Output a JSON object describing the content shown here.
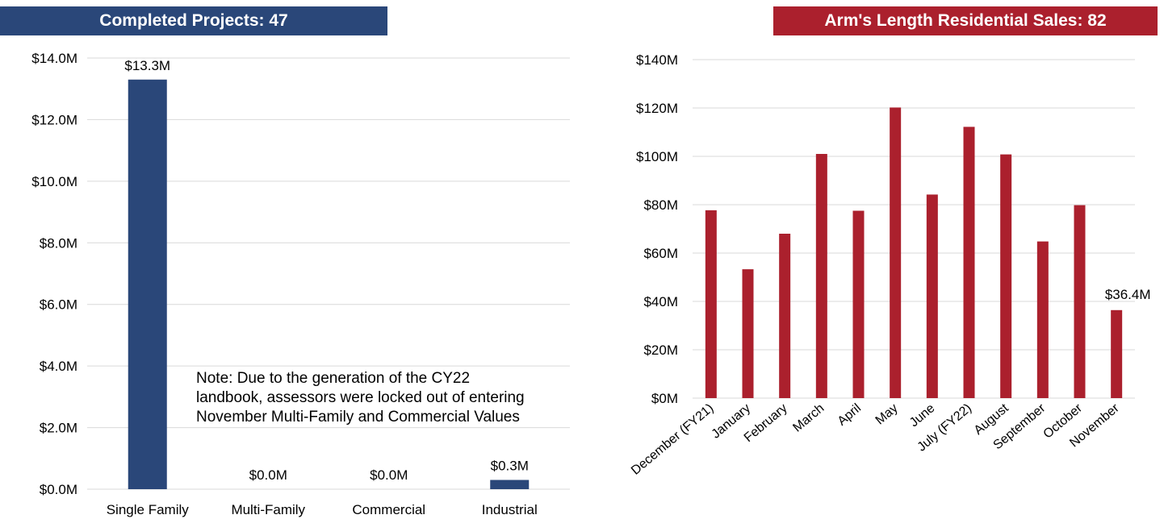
{
  "colors": {
    "left_accent": "#2a4779",
    "right_accent": "#ab202d",
    "grid": "#d9d9d9"
  },
  "left": {
    "banner": "Completed Projects: 47",
    "note": "Note: Due to the generation of the CY22 landbook, assessors were locked out of entering November Multi-Family and Commercial Values"
  },
  "right": {
    "banner": "Arm's Length Residential Sales: 82"
  },
  "chart_data": [
    {
      "type": "bar",
      "title": "Completed Projects: 47",
      "categories": [
        "Single Family",
        "Multi-Family",
        "Commercial",
        "Industrial"
      ],
      "values": [
        13.3,
        0.0,
        0.0,
        0.3
      ],
      "data_labels": [
        "$13.3M",
        "$0.0M",
        "$0.0M",
        "$0.3M"
      ],
      "ylim": [
        0,
        14
      ],
      "yticks": [
        0,
        2,
        4,
        6,
        8,
        10,
        12,
        14
      ],
      "ytick_labels": [
        "$0.0M",
        "$2.0M",
        "$4.0M",
        "$6.0M",
        "$8.0M",
        "$10.0M",
        "$12.0M",
        "$14.0M"
      ],
      "grid": true
    },
    {
      "type": "bar",
      "title": "Arm's Length Residential Sales: 82",
      "categories": [
        "December (FY21)",
        "January",
        "February",
        "March",
        "April",
        "May",
        "June",
        "July (FY22)",
        "August",
        "September",
        "October",
        "November"
      ],
      "values": [
        77.7,
        53.3,
        68.0,
        101.0,
        77.5,
        120.2,
        84.2,
        112.2,
        100.8,
        64.8,
        79.8,
        36.4
      ],
      "data_labels": [
        "",
        "",
        "",
        "",
        "",
        "",
        "",
        "",
        "",
        "",
        "",
        "$36.4M"
      ],
      "ylim": [
        0,
        140
      ],
      "yticks": [
        0,
        20,
        40,
        60,
        80,
        100,
        120,
        140
      ],
      "ytick_labels": [
        "$0M",
        "$20M",
        "$40M",
        "$60M",
        "$80M",
        "$100M",
        "$120M",
        "$140M"
      ],
      "grid": true
    }
  ]
}
